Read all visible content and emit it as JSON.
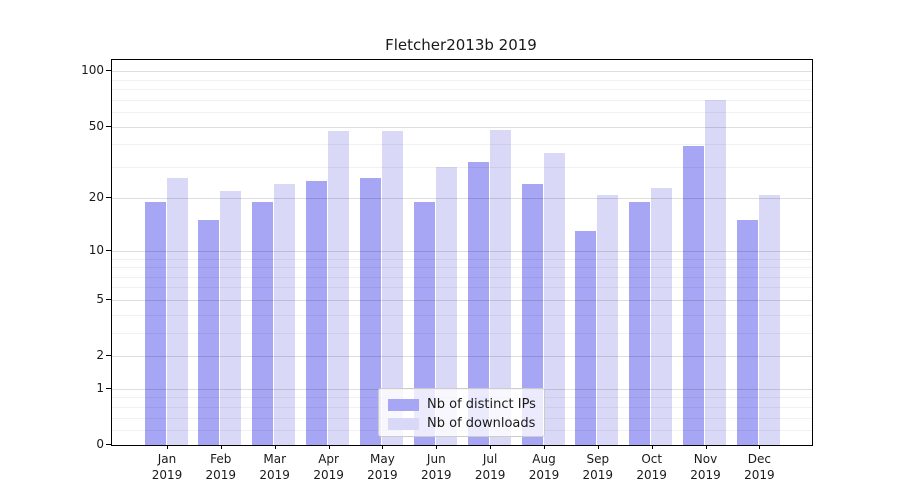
{
  "chart_data": {
    "type": "bar",
    "title": "Fletcher2013b 2019",
    "categories": [
      "Jan",
      "Feb",
      "Mar",
      "Apr",
      "May",
      "Jun",
      "Jul",
      "Aug",
      "Sep",
      "Oct",
      "Nov",
      "Dec"
    ],
    "category_year": "2019",
    "series": [
      {
        "name": "Nb of distinct IPs",
        "color": "#a6a6f5",
        "values": [
          19,
          15,
          19,
          25,
          26,
          19,
          32,
          24,
          13,
          19,
          39,
          15
        ]
      },
      {
        "name": "Nb of downloads",
        "color": "#d9d9f7",
        "values": [
          26,
          22,
          24,
          47,
          47,
          30,
          48,
          36,
          21,
          23,
          70,
          21
        ]
      }
    ],
    "xlabel": "",
    "ylabel": "",
    "yscale": "log1p",
    "ylim": [
      0,
      115
    ],
    "yticks": [
      100,
      50,
      20,
      10,
      5,
      2,
      1,
      0
    ],
    "yticks_minor": [
      0.2,
      0.4,
      0.6,
      0.8,
      3,
      4,
      6,
      7,
      8,
      9,
      30,
      40,
      60,
      70,
      80,
      90
    ],
    "grid": true,
    "legend_position": "lower center",
    "axis_color": "#000000",
    "background_color": "#ffffff"
  }
}
